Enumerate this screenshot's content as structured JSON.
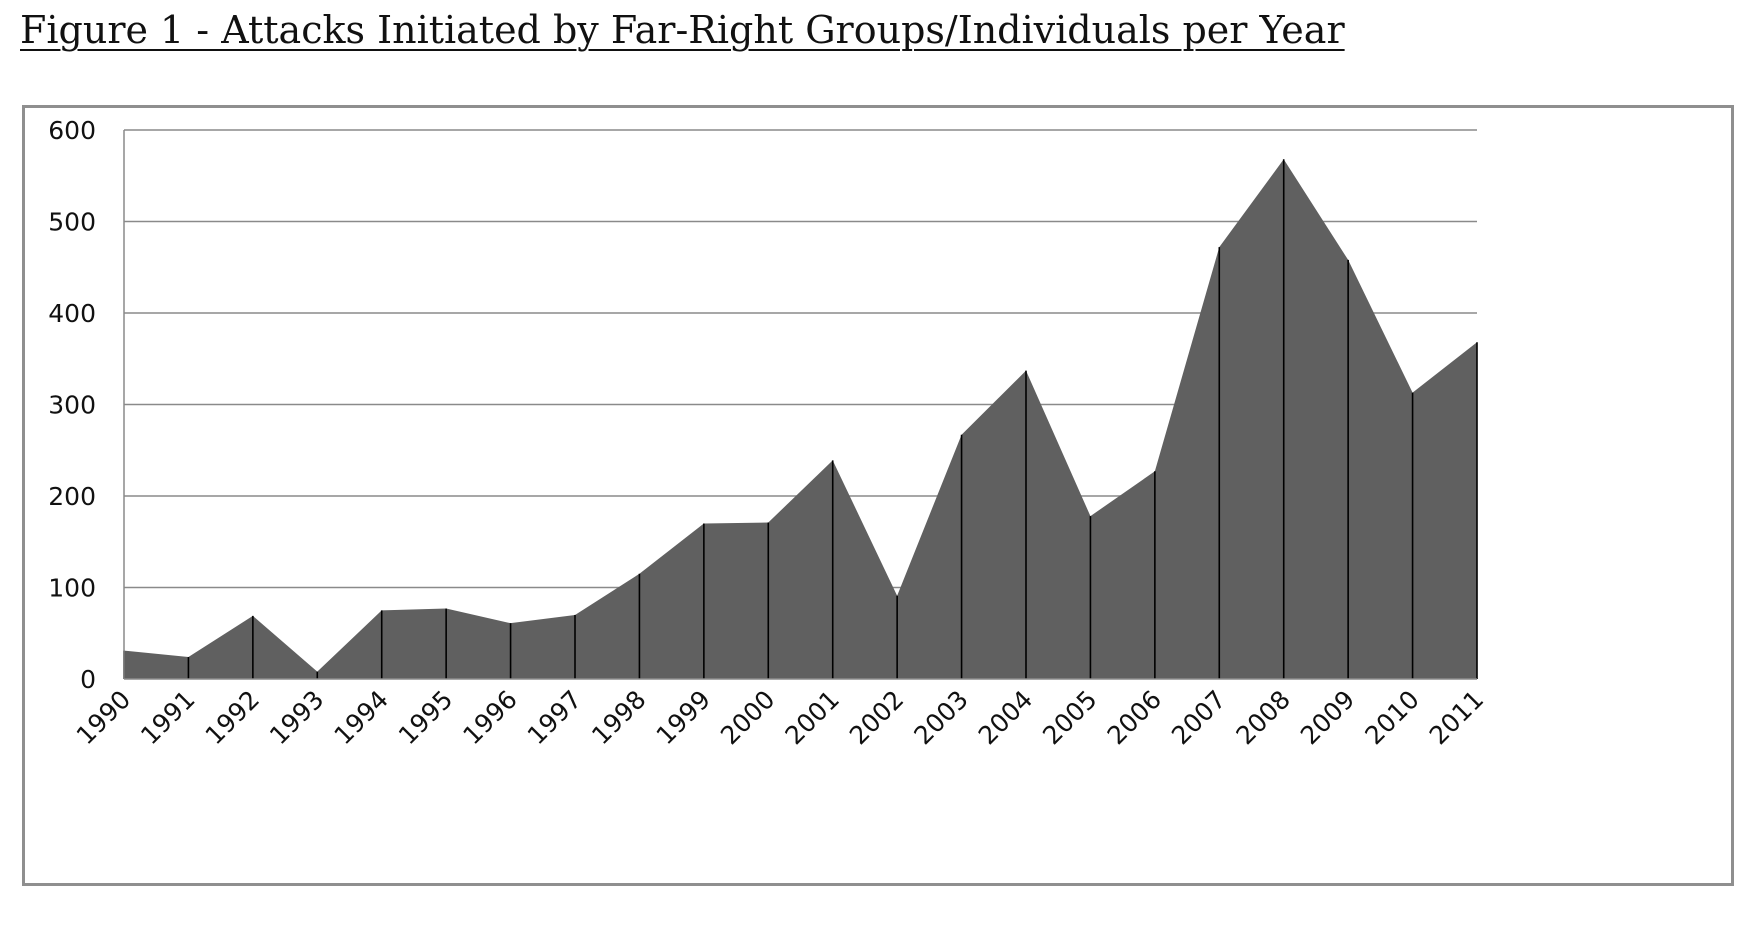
{
  "title": "Figure 1 - Attacks Initiated by Far-Right Groups/Individuals per Year",
  "chart_data": {
    "type": "area",
    "title": "Figure 1 - Attacks Initiated by Far-Right Groups/Individuals per Year",
    "xlabel": "",
    "ylabel": "",
    "categories": [
      "1990",
      "1991",
      "1992",
      "1993",
      "1994",
      "1995",
      "1996",
      "1997",
      "1998",
      "1999",
      "2000",
      "2001",
      "2002",
      "2003",
      "2004",
      "2005",
      "2006",
      "2007",
      "2008",
      "2009",
      "2010",
      "2011"
    ],
    "values": [
      31,
      24,
      69,
      8,
      75,
      77,
      61,
      70,
      115,
      170,
      171,
      239,
      91,
      267,
      337,
      178,
      227,
      472,
      568,
      458,
      313,
      368
    ],
    "ylim": [
      0,
      600
    ],
    "yticks": [
      "0",
      "100",
      "200",
      "300",
      "400",
      "500",
      "600"
    ],
    "grid": true,
    "legend": "none",
    "fill_color": "#606060",
    "grid_color": "#8a8a8a",
    "drop_line_color": "#000000"
  }
}
